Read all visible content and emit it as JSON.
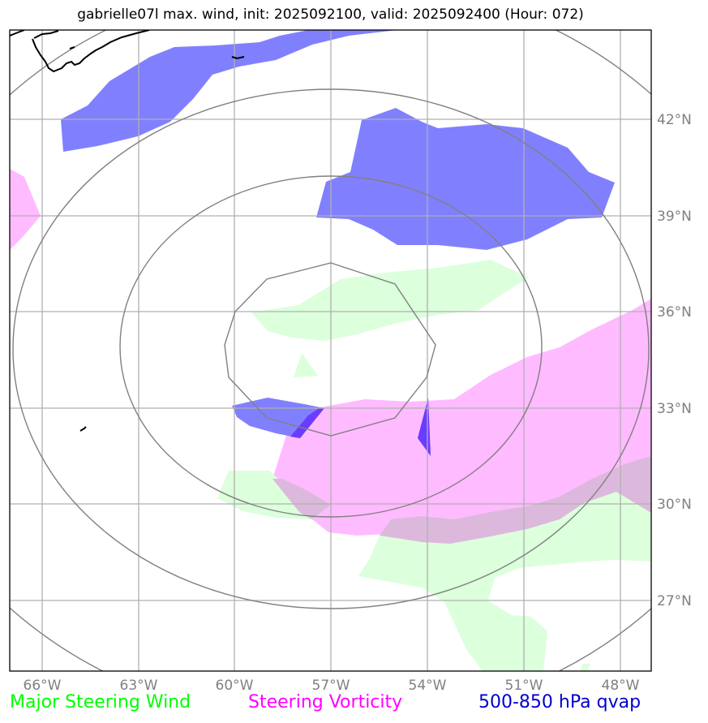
{
  "title": "gabrielle07l max. wind, init: 2025092100, valid: 2025092400 (Hour: 072)",
  "storm": "gabrielle07l",
  "init": "2025092100",
  "valid": "2025092400",
  "forecast_hour": "072",
  "map": {
    "lon_range": [
      -67,
      -47.4
    ],
    "lat_range": [
      24.8,
      44.8
    ],
    "lon_ticks": [
      -66,
      -63,
      -60,
      -57,
      -54,
      -51,
      -48
    ],
    "lat_ticks": [
      27,
      30,
      33,
      36,
      39,
      42
    ],
    "lon_tick_labels": [
      "66°W",
      "63°W",
      "60°W",
      "57°W",
      "54°W",
      "51°W",
      "48°W"
    ],
    "lat_tick_labels": [
      "27°N",
      "30°N",
      "33°N",
      "36°N",
      "39°N",
      "42°N"
    ],
    "range_rings_center": [
      -57.0,
      34.9
    ],
    "range_ring_count": 4
  },
  "legend": [
    {
      "label": "Major Steering Wind",
      "color": "#00ff00"
    },
    {
      "label": "Steering Vorticity",
      "color": "#ff00ff"
    },
    {
      "label": "500-850 hPa qvap",
      "color": "#0000cd"
    }
  ],
  "colors": {
    "steering_wind_fill": "#dcffdc",
    "vorticity_fill": "#ffbbff",
    "qvap_fill": "#8080ff",
    "qvap_dark": "#6a3cff",
    "overlap_fill": "#dcb9dc",
    "grid": "#b0b0b0",
    "rings": "#808080",
    "coast": "#000000"
  }
}
